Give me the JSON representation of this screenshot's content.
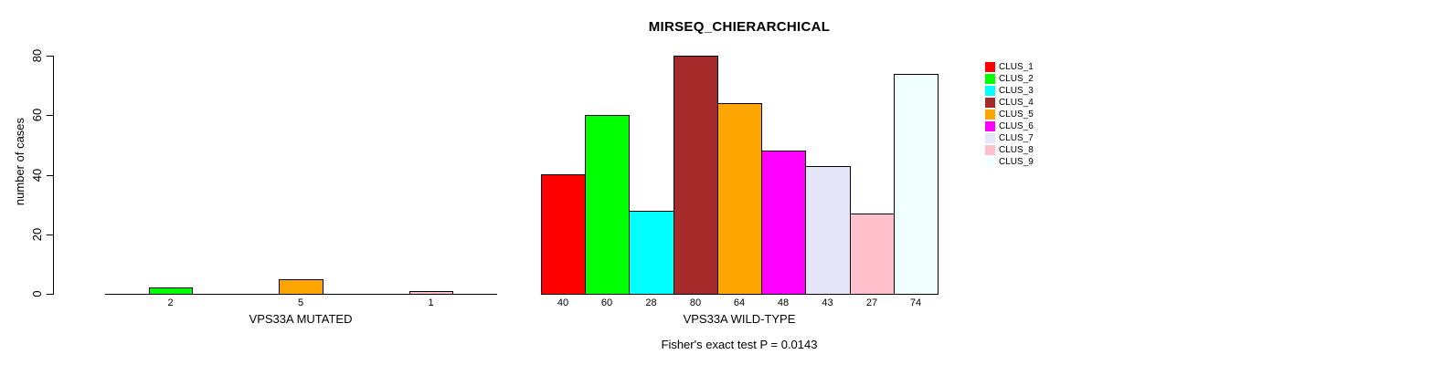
{
  "chart_data": {
    "type": "bar",
    "title": "MIRSEQ_CHIERARCHICAL",
    "ylabel": "number of cases",
    "ylim": [
      0,
      80
    ],
    "yticks": [
      0,
      20,
      40,
      60,
      80
    ],
    "grid": false,
    "legend_position": "right",
    "categories": [
      "CLUS_1",
      "CLUS_2",
      "CLUS_3",
      "CLUS_4",
      "CLUS_5",
      "CLUS_6",
      "CLUS_7",
      "CLUS_8",
      "CLUS_9"
    ],
    "colors": [
      "#ff0000",
      "#00ff00",
      "#00ffff",
      "#a52a2a",
      "#ffa500",
      "#ff00ff",
      "#e6e6fa",
      "#ffc0cb",
      "#f0ffff"
    ],
    "groups": [
      {
        "xlabel": "VPS33A MUTATED",
        "values": [
          0,
          2,
          0,
          0,
          5,
          0,
          0,
          1,
          0
        ],
        "bar_labels": [
          "",
          "2",
          "",
          "",
          "5",
          "",
          "",
          "1",
          ""
        ]
      },
      {
        "xlabel": "VPS33A WILD-TYPE",
        "values": [
          40,
          60,
          28,
          80,
          64,
          48,
          43,
          27,
          74
        ],
        "bar_labels": [
          "40",
          "60",
          "28",
          "80",
          "64",
          "48",
          "43",
          "27",
          "74"
        ]
      }
    ],
    "annotation": "Fisher's exact test P = 0.0143"
  }
}
